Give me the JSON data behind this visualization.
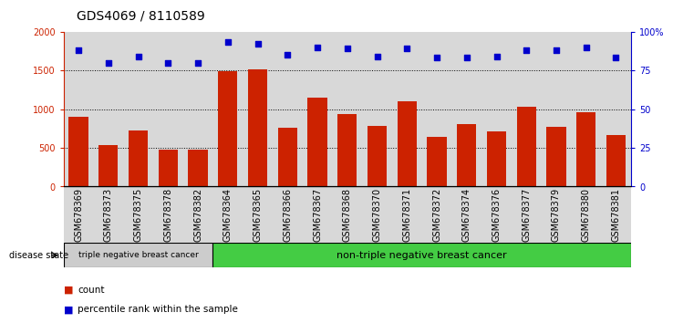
{
  "title": "GDS4069 / 8110589",
  "categories": [
    "GSM678369",
    "GSM678373",
    "GSM678375",
    "GSM678378",
    "GSM678382",
    "GSM678364",
    "GSM678365",
    "GSM678366",
    "GSM678367",
    "GSM678368",
    "GSM678370",
    "GSM678371",
    "GSM678372",
    "GSM678374",
    "GSM678376",
    "GSM678377",
    "GSM678379",
    "GSM678380",
    "GSM678381"
  ],
  "bar_values": [
    900,
    530,
    720,
    480,
    480,
    1490,
    1510,
    760,
    1150,
    930,
    780,
    1100,
    640,
    810,
    710,
    1030,
    770,
    960,
    660
  ],
  "scatter_values": [
    88,
    80,
    84,
    80,
    80,
    93,
    92,
    85,
    90,
    89,
    84,
    89,
    83,
    83,
    84,
    88,
    88,
    90,
    83
  ],
  "bar_color": "#cc2200",
  "scatter_color": "#0000cc",
  "ylim_left": [
    0,
    2000
  ],
  "ylim_right": [
    0,
    100
  ],
  "yticks_left": [
    0,
    500,
    1000,
    1500,
    2000
  ],
  "ytick_labels_left": [
    "0",
    "500",
    "1000",
    "1500",
    "2000"
  ],
  "yticks_right": [
    0,
    25,
    50,
    75,
    100
  ],
  "ytick_labels_right": [
    "0",
    "25",
    "50",
    "75",
    "100%"
  ],
  "grid_values": [
    500,
    1000,
    1500
  ],
  "group1_label": "triple negative breast cancer",
  "group2_label": "non-triple negative breast cancer",
  "group1_count": 5,
  "group2_count": 14,
  "disease_state_label": "disease state",
  "legend_count_label": "count",
  "legend_pct_label": "percentile rank within the sample",
  "title_fontsize": 10,
  "tick_fontsize": 7,
  "bar_width": 0.65,
  "background_color": "#ffffff",
  "col_bg_odd": "#d8d8d8",
  "col_bg_even": "#eeeeee",
  "group_color1": "#cccccc",
  "group_color2": "#44cc44"
}
